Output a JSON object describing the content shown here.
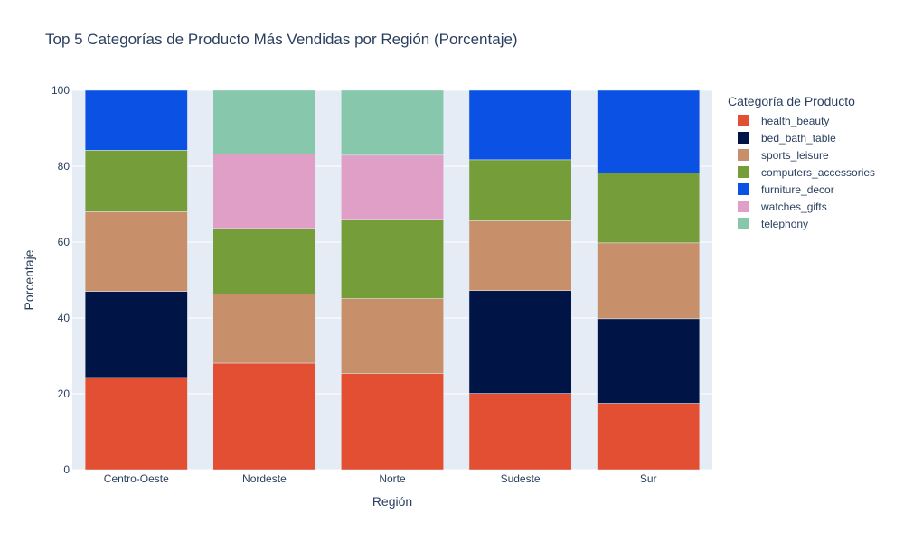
{
  "chart_data": {
    "type": "bar",
    "stacked": true,
    "title": "Top 5 Categorías de Producto Más Vendidas por Región (Porcentaje)",
    "xlabel": "Región",
    "ylabel": "Porcentaje",
    "ylim": [
      0,
      100
    ],
    "yticks": [
      0,
      20,
      40,
      60,
      80,
      100
    ],
    "grid": true,
    "legend_title": "Categoría de Producto",
    "legend_position": "right",
    "categories": [
      "Centro-Oeste",
      "Nordeste",
      "Norte",
      "Sudeste",
      "Sur"
    ],
    "series": [
      {
        "name": "health_beauty",
        "color": "#E34F33",
        "values": [
          24.3,
          28.1,
          25.3,
          20.1,
          17.5
        ]
      },
      {
        "name": "bed_bath_table",
        "color": "#001546",
        "values": [
          22.7,
          0,
          0,
          27.1,
          22.3
        ]
      },
      {
        "name": "sports_leisure",
        "color": "#C8906A",
        "values": [
          21.0,
          18.2,
          19.8,
          18.4,
          20.0
        ]
      },
      {
        "name": "computers_accessories",
        "color": "#759E3A",
        "values": [
          16.2,
          17.3,
          20.9,
          16.1,
          18.4
        ]
      },
      {
        "name": "furniture_decor",
        "color": "#0A51E4",
        "values": [
          15.8,
          0,
          0,
          18.3,
          21.8
        ]
      },
      {
        "name": "watches_gifts",
        "color": "#E09FC7",
        "values": [
          0,
          19.6,
          16.9,
          0,
          0
        ]
      },
      {
        "name": "telephony",
        "color": "#87C7AB",
        "values": [
          0,
          16.8,
          17.1,
          0,
          0
        ]
      }
    ]
  }
}
